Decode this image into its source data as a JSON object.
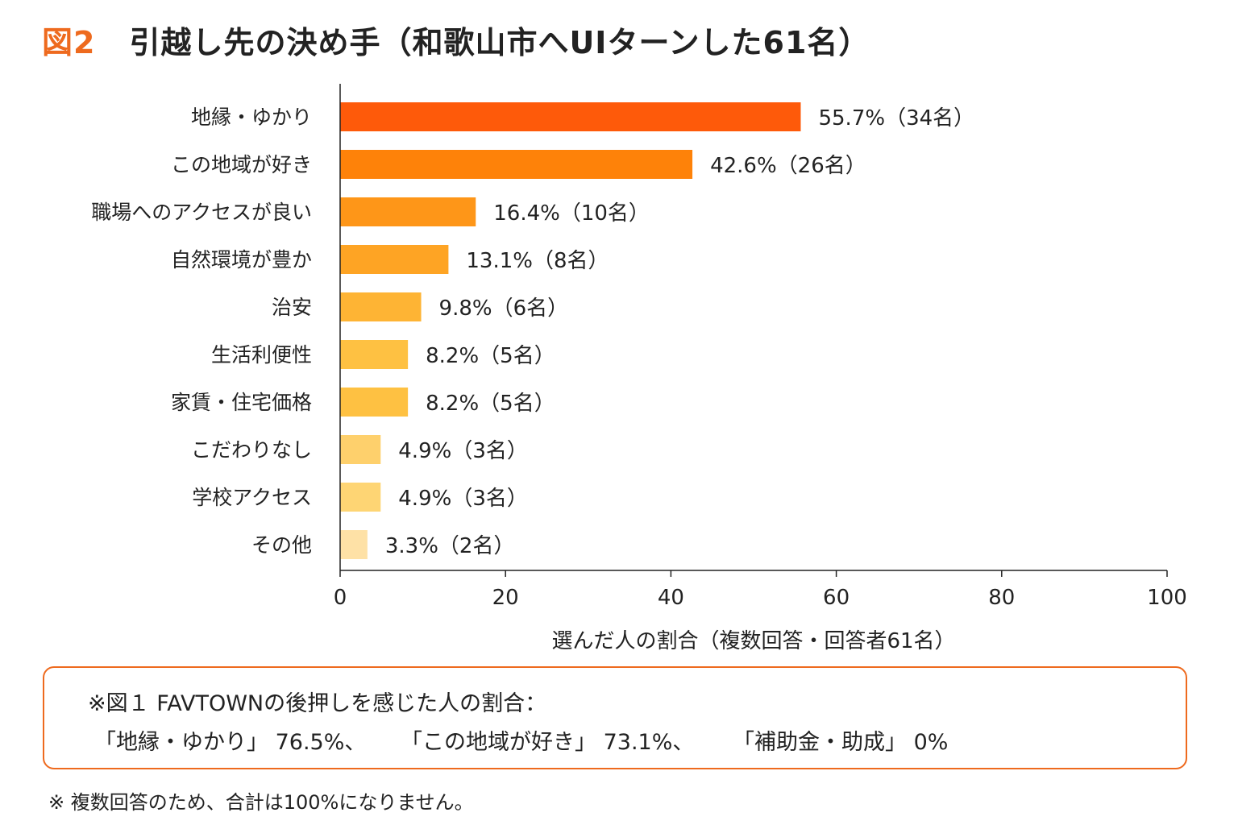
{
  "header": {
    "fig_label": "図2",
    "title": "引越し先の決め手（和歌山市へUIターンした61名）"
  },
  "chart_data": {
    "type": "bar",
    "orientation": "horizontal",
    "categories": [
      "地縁・ゆかり",
      "この地域が好き",
      "職場へのアクセスが良い",
      "自然環境が豊か",
      "治安",
      "生活利便性",
      "家賃・住宅価格",
      "こだわりなし",
      "学校アクセス",
      "その他"
    ],
    "values": [
      55.7,
      42.6,
      16.4,
      13.1,
      9.8,
      8.2,
      8.2,
      4.9,
      4.9,
      3.3
    ],
    "data_labels": [
      "55.7%（34名）",
      "42.6%（26名）",
      "16.4%（10名）",
      "13.1%（8名）",
      "9.8%（6名）",
      "8.2%（5名）",
      "8.2%（5名）",
      "4.9%（3名）",
      "4.9%（3名）",
      "3.3%（2名）"
    ],
    "colors": [
      "#fe5a0a",
      "#fe8209",
      "#fe9618",
      "#fea424",
      "#feb434",
      "#fec142",
      "#fec142",
      "#fed06c",
      "#fed574",
      "#fee1a6"
    ],
    "xlabel": "選んだ人の割合（複数回答・回答者61名）",
    "xlim": [
      0,
      100
    ],
    "xticks": [
      "0",
      "20",
      "40",
      "60",
      "80",
      "100"
    ],
    "grid": false
  },
  "note": {
    "line1": "※図１ FAVTOWNの後押しを感じた人の割合：",
    "line2_items": [
      "「地縁・ゆかり」 76.5%、",
      "「この地域が好き」 73.1%、",
      "「補助金・助成」 0%"
    ]
  },
  "footnote": "※ 複数回答のため、合計は100%になりません。",
  "accent_color": "#ee6a1e"
}
